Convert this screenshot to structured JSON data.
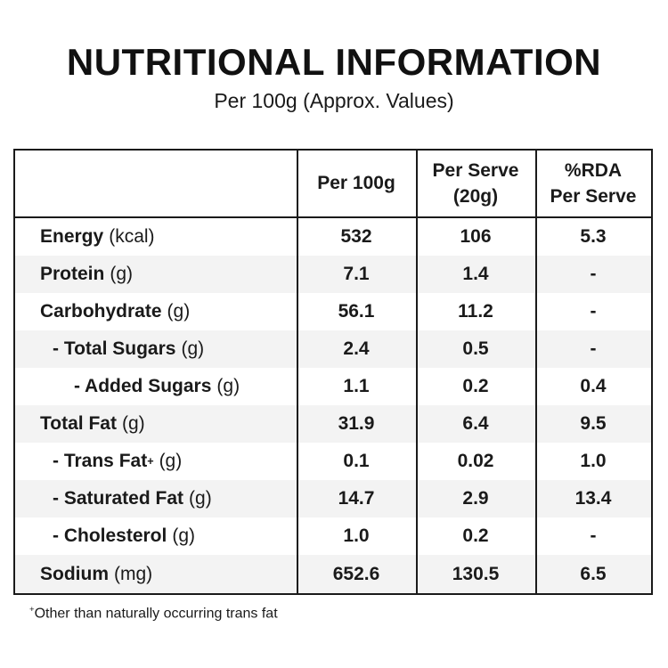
{
  "title": "NUTRITIONAL INFORMATION",
  "subtitle": "Per 100g (Approx. Values)",
  "headers": {
    "col1": "Per 100g",
    "col2_line1": "Per Serve",
    "col2_line2": "(20g)",
    "col3_line1": "%RDA",
    "col3_line2": "Per Serve"
  },
  "rows": [
    {
      "label": "Energy",
      "unit": "(kcal)",
      "per100g": "532",
      "perServe": "106",
      "rda": "5.3"
    },
    {
      "label": "Protein",
      "unit": "(g)",
      "per100g": "7.1",
      "perServe": "1.4",
      "rda": "-"
    },
    {
      "label": "Carbohydrate",
      "unit": "(g)",
      "per100g": "56.1",
      "perServe": "11.2",
      "rda": "-"
    },
    {
      "label": "- Total Sugars",
      "unit": "(g)",
      "per100g": "2.4",
      "perServe": "0.5",
      "rda": "-"
    },
    {
      "label": "- Added Sugars",
      "unit": "(g)",
      "per100g": "1.1",
      "perServe": "0.2",
      "rda": "0.4"
    },
    {
      "label": "Total Fat",
      "unit": "(g)",
      "per100g": "31.9",
      "perServe": "6.4",
      "rda": "9.5"
    },
    {
      "label": "- Trans Fat",
      "sup": "+",
      "unit": "(g)",
      "per100g": "0.1",
      "perServe": "0.02",
      "rda": "1.0"
    },
    {
      "label": "- Saturated Fat",
      "unit": "(g)",
      "per100g": "14.7",
      "perServe": "2.9",
      "rda": "13.4"
    },
    {
      "label": "- Cholesterol",
      "unit": "(g)",
      "per100g": "1.0",
      "perServe": "0.2",
      "rda": "-"
    },
    {
      "label": "Sodium",
      "unit": "(mg)",
      "per100g": "652.6",
      "perServe": "130.5",
      "rda": "6.5"
    }
  ],
  "footnote": {
    "sup": "+",
    "text": "Other than naturally occurring trans fat"
  }
}
